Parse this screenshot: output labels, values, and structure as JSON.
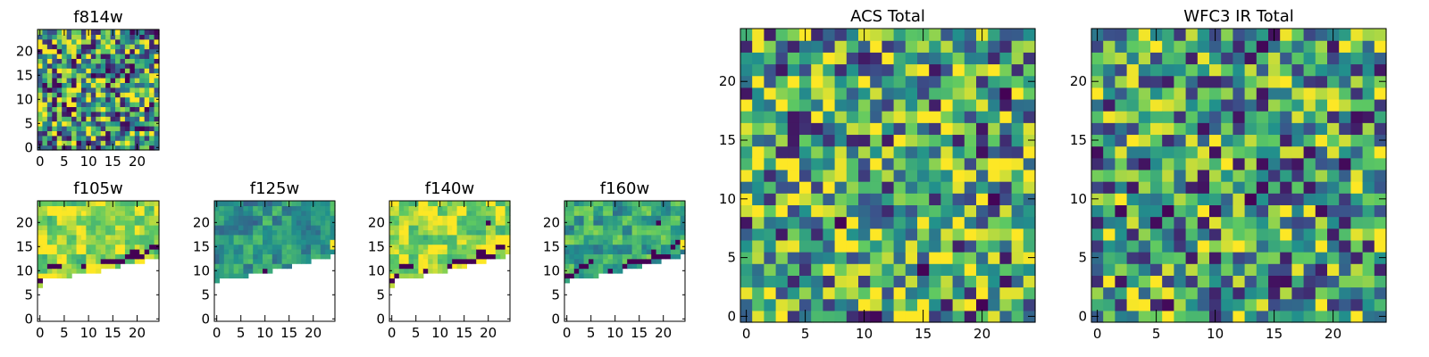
{
  "chart_data": [
    {
      "type": "heatmap",
      "title": "f814w",
      "grid": 25,
      "coverage": "full",
      "palette": "viridis",
      "xlim": [
        0,
        24
      ],
      "ylim": [
        0,
        24
      ],
      "xticks": [
        "0",
        "5",
        "10",
        "15",
        "20"
      ],
      "yticks": [
        "0",
        "5",
        "10",
        "15",
        "20"
      ],
      "seed": 11,
      "block": 1,
      "bias": 0.55,
      "spread": 0.55,
      "dark_rate": 0.06
    },
    {
      "type": "heatmap",
      "title": "f105w",
      "grid": 25,
      "coverage": "partial",
      "palette": "viridis",
      "xlim": [
        0,
        24
      ],
      "ylim": [
        0,
        24
      ],
      "xticks": [
        "0",
        "5",
        "10",
        "15",
        "20"
      ],
      "yticks": [
        "0",
        "5",
        "10",
        "15",
        "20"
      ],
      "seed": 21,
      "block": 2,
      "bias": 0.85,
      "spread": 0.22,
      "boundary": [
        7,
        9,
        9,
        9,
        9,
        9,
        9,
        10,
        10,
        10,
        10,
        10,
        10,
        11,
        11,
        11,
        11,
        12,
        12,
        12,
        12,
        12,
        13,
        13,
        13
      ],
      "dark_cells": [
        [
          0,
          8
        ],
        [
          1,
          8
        ],
        [
          2,
          11
        ],
        [
          3,
          11
        ],
        [
          4,
          11
        ],
        [
          9,
          11
        ],
        [
          13,
          12
        ],
        [
          14,
          12
        ],
        [
          15,
          12
        ],
        [
          16,
          12
        ],
        [
          17,
          12
        ],
        [
          18,
          13
        ],
        [
          19,
          13
        ],
        [
          20,
          13
        ],
        [
          21,
          13
        ],
        [
          22,
          14
        ],
        [
          23,
          15
        ],
        [
          24,
          15
        ],
        [
          19,
          14
        ],
        [
          20,
          14
        ]
      ]
    },
    {
      "type": "heatmap",
      "title": "f125w",
      "grid": 25,
      "coverage": "partial",
      "palette": "viridis",
      "xlim": [
        0,
        24
      ],
      "ylim": [
        0,
        24
      ],
      "xticks": [
        "0",
        "5",
        "10",
        "15",
        "20"
      ],
      "yticks": [
        "0",
        "5",
        "10",
        "15",
        "20"
      ],
      "seed": 31,
      "block": 2,
      "bias": 0.52,
      "spread": 0.18,
      "boundary": [
        8,
        9,
        9,
        9,
        9,
        9,
        9,
        10,
        10,
        10,
        10,
        10,
        11,
        11,
        11,
        11,
        12,
        12,
        12,
        12,
        13,
        13,
        13,
        13,
        14
      ],
      "dark_cells": [
        [
          10,
          10
        ]
      ],
      "bright_cells": [
        [
          24,
          15
        ],
        [
          24,
          16
        ]
      ]
    },
    {
      "type": "heatmap",
      "title": "f140w",
      "grid": 25,
      "coverage": "partial",
      "palette": "viridis",
      "xlim": [
        0,
        24
      ],
      "ylim": [
        0,
        24
      ],
      "xticks": [
        "0",
        "5",
        "10",
        "15",
        "20"
      ],
      "yticks": [
        "0",
        "5",
        "10",
        "15",
        "20"
      ],
      "seed": 41,
      "block": 2,
      "bias": 0.85,
      "spread": 0.22,
      "boundary": [
        7,
        9,
        9,
        9,
        9,
        9,
        9,
        10,
        10,
        10,
        10,
        10,
        11,
        11,
        11,
        11,
        12,
        12,
        12,
        12,
        13,
        13,
        13,
        13,
        14
      ],
      "dark_cells": [
        [
          0,
          8
        ],
        [
          1,
          9
        ],
        [
          2,
          11
        ],
        [
          3,
          11
        ],
        [
          4,
          11
        ],
        [
          7,
          10
        ],
        [
          12,
          11
        ],
        [
          13,
          12
        ],
        [
          14,
          12
        ],
        [
          15,
          12
        ],
        [
          16,
          12
        ],
        [
          17,
          12
        ],
        [
          18,
          13
        ],
        [
          19,
          13
        ],
        [
          20,
          13
        ],
        [
          21,
          13
        ],
        [
          18,
          14
        ],
        [
          19,
          14
        ],
        [
          22,
          15
        ],
        [
          23,
          15
        ],
        [
          20,
          20
        ]
      ],
      "bright_cells": [
        [
          24,
          15
        ]
      ]
    },
    {
      "type": "heatmap",
      "title": "f160w",
      "grid": 25,
      "coverage": "partial",
      "palette": "viridis",
      "xlim": [
        0,
        24
      ],
      "ylim": [
        0,
        24
      ],
      "xticks": [
        "0",
        "5",
        "10",
        "15",
        "20"
      ],
      "yticks": [
        "0",
        "5",
        "10",
        "15",
        "20"
      ],
      "seed": 51,
      "block": 2,
      "bias": 0.6,
      "spread": 0.2,
      "boundary": [
        8,
        9,
        9,
        9,
        9,
        9,
        9,
        10,
        10,
        10,
        10,
        10,
        11,
        11,
        11,
        11,
        12,
        12,
        12,
        12,
        13,
        13,
        13,
        13,
        14
      ],
      "dark_cells": [
        [
          0,
          9
        ],
        [
          1,
          9
        ],
        [
          2,
          10
        ],
        [
          3,
          11
        ],
        [
          4,
          11
        ],
        [
          5,
          12
        ],
        [
          9,
          10
        ],
        [
          12,
          11
        ],
        [
          13,
          12
        ],
        [
          14,
          12
        ],
        [
          15,
          12
        ],
        [
          16,
          12
        ],
        [
          17,
          12
        ],
        [
          18,
          13
        ],
        [
          19,
          13
        ],
        [
          20,
          13
        ],
        [
          21,
          13
        ],
        [
          18,
          14
        ],
        [
          22,
          15
        ],
        [
          23,
          16
        ],
        [
          19,
          20
        ]
      ],
      "bright_cells": [
        [
          24,
          15
        ],
        [
          24,
          16
        ]
      ]
    },
    {
      "type": "heatmap",
      "title": "ACS Total",
      "grid": 25,
      "coverage": "full",
      "palette": "viridis",
      "xlim": [
        0,
        24
      ],
      "ylim": [
        0,
        24
      ],
      "xticks": [
        "0",
        "5",
        "10",
        "15",
        "20"
      ],
      "yticks": [
        "0",
        "5",
        "10",
        "15",
        "20"
      ],
      "seed": 61,
      "block": 1,
      "bias": 0.6,
      "spread": 0.5,
      "dark_rate": 0.035
    },
    {
      "type": "heatmap",
      "title": "WFC3 IR Total",
      "grid": 25,
      "coverage": "full",
      "palette": "viridis",
      "xlim": [
        0,
        24
      ],
      "ylim": [
        0,
        24
      ],
      "xticks": [
        "0",
        "5",
        "10",
        "15",
        "20"
      ],
      "yticks": [
        "0",
        "5",
        "10",
        "15",
        "20"
      ],
      "seed": 71,
      "block": 1,
      "bias": 0.55,
      "spread": 0.5,
      "dark_rate": 0.03
    }
  ]
}
